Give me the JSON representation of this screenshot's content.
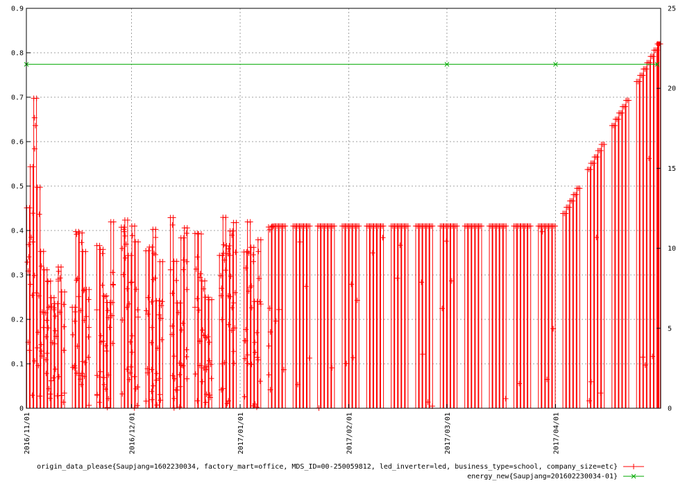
{
  "chart_data": {
    "type": "line",
    "title": "",
    "grid": true,
    "legend_placement": "bottom-right",
    "x_axis": {
      "type": "date",
      "range": [
        "2016-11-01",
        "2017-04-30"
      ],
      "ticks": [
        {
          "date": "2016-11-01",
          "label": "2016/11/01"
        },
        {
          "date": "2016-12-01",
          "label": "2016/12/01"
        },
        {
          "date": "2017-01-01",
          "label": "2017/01/01"
        },
        {
          "date": "2017-02-01",
          "label": "2017/02/01"
        },
        {
          "date": "2017-03-01",
          "label": "2017/03/01"
        },
        {
          "date": "2017-04-01",
          "label": "2017/04/01"
        }
      ]
    },
    "y_axis": {
      "range": [
        0,
        0.9
      ],
      "ticks": [
        0,
        0.1,
        0.2,
        0.3,
        0.4,
        0.5,
        0.6,
        0.7,
        0.8,
        0.9
      ],
      "tick_labels": [
        "0",
        "0.1",
        "0.2",
        "0.3",
        "0.4",
        "0.5",
        "0.6",
        "0.7",
        "0.8",
        "0.9"
      ]
    },
    "y2_axis": {
      "range": [
        0,
        25
      ],
      "ticks": [
        0,
        5,
        10,
        15,
        20,
        25
      ],
      "tick_labels": [
        "0",
        "5",
        "10",
        "15",
        "20",
        "25"
      ]
    },
    "series": [
      {
        "name": "origin_data_please{Saupjang=1602230034, factory_mart=office, MDS_ID=00-250059812, led_inverter=led, business_type=school, company_size=etc}",
        "axis": "y",
        "color": "#ff0000",
        "marker": "plus",
        "description_points": [
          {
            "date": "2016-11-01",
            "y": 0.82
          },
          {
            "date": "2016-11-03",
            "y": 0.8
          },
          {
            "date": "2016-11-05",
            "y": 0.4
          },
          {
            "date": "2016-11-10",
            "y": 0.4
          },
          {
            "date": "2016-11-20",
            "y": 0.4
          },
          {
            "date": "2016-12-05",
            "y": 0.42
          },
          {
            "date": "2016-12-20",
            "y": 0.41
          },
          {
            "date": "2017-01-05",
            "y": 0.41
          },
          {
            "date": "2017-01-10",
            "y": 0.41
          },
          {
            "date": "2017-02-01",
            "y": 0.41
          },
          {
            "date": "2017-03-01",
            "y": 0.41
          },
          {
            "date": "2017-04-01",
            "y": 0.41
          },
          {
            "date": "2017-04-30",
            "y": 0.82
          }
        ]
      },
      {
        "name": "energy_new{Saupjang=201602230034-01}",
        "axis": "y2",
        "color": "#00aa00",
        "marker": "x",
        "points": [
          {
            "date": "2016-11-01",
            "y": 21.5
          },
          {
            "date": "2017-03-01",
            "y": 21.5
          },
          {
            "date": "2017-04-01",
            "y": 21.5
          },
          {
            "date": "2017-04-30",
            "y": 21.5
          }
        ]
      }
    ]
  }
}
